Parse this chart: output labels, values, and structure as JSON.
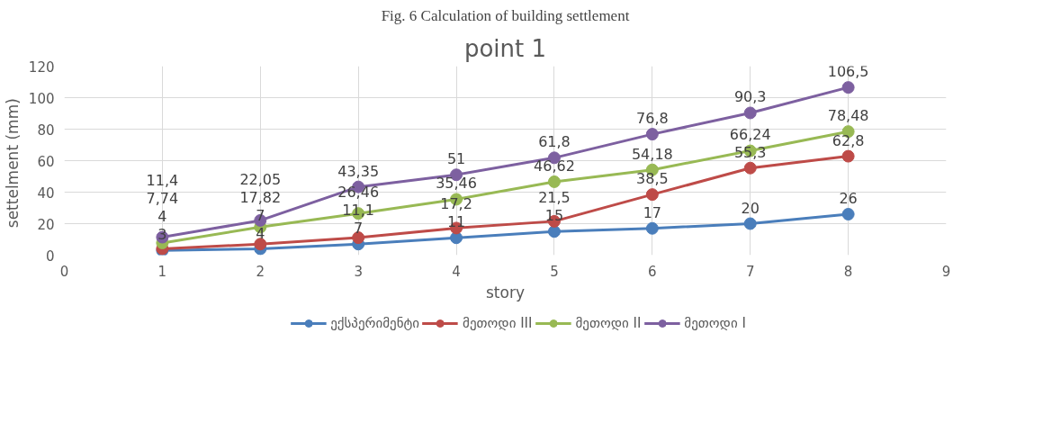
{
  "chart_data": {
    "type": "line",
    "title": "point 1",
    "xlabel": "story",
    "ylabel": "settelment  (mm)",
    "annotations": [
      "Fig. 6 Calculation of building settlement"
    ],
    "x": [
      1,
      2,
      3,
      4,
      5,
      6,
      7,
      8
    ],
    "series": [
      {
        "name": "ექსპერიმენტი",
        "color": "#4a7ebb",
        "values": [
          3,
          4,
          7,
          11,
          15,
          17,
          20,
          26
        ],
        "value_labels": [
          "3",
          "4",
          "7",
          "11",
          "15",
          "17",
          "20",
          "26"
        ]
      },
      {
        "name": "მეთოდი III",
        "color": "#be4b48",
        "values": [
          4,
          7,
          11.1,
          17.2,
          21.5,
          38.5,
          55.3,
          62.8
        ],
        "value_labels": [
          "4",
          "7",
          "11,1",
          "17,2",
          "21,5",
          "38,5",
          "55,3",
          "62,8"
        ]
      },
      {
        "name": "მეთოდი II",
        "color": "#98b954",
        "values": [
          7.74,
          17.82,
          26.46,
          35.46,
          46.62,
          54.18,
          66.24,
          78.48
        ],
        "value_labels": [
          "7,74",
          "17,82",
          "26,46",
          "35,46",
          "46,62",
          "54,18",
          "66,24",
          "78,48"
        ]
      },
      {
        "name": "მეთოდი I",
        "color": "#7d60a0",
        "values": [
          11.4,
          22.05,
          43.35,
          51,
          61.8,
          76.8,
          90.3,
          106.5
        ],
        "value_labels": [
          "11,4",
          "22,05",
          "43,35",
          "51",
          "61,8",
          "76,8",
          "90,3",
          "106,5"
        ]
      }
    ],
    "xlim": [
      0,
      9
    ],
    "xticks": [
      0,
      1,
      2,
      3,
      4,
      5,
      6,
      7,
      8,
      9
    ],
    "ylim": [
      0,
      120
    ],
    "yticks": [
      0,
      20,
      40,
      60,
      80,
      100,
      120
    ],
    "grid": true,
    "legend": "bottom",
    "marker": "circle",
    "line_style": "solid"
  }
}
